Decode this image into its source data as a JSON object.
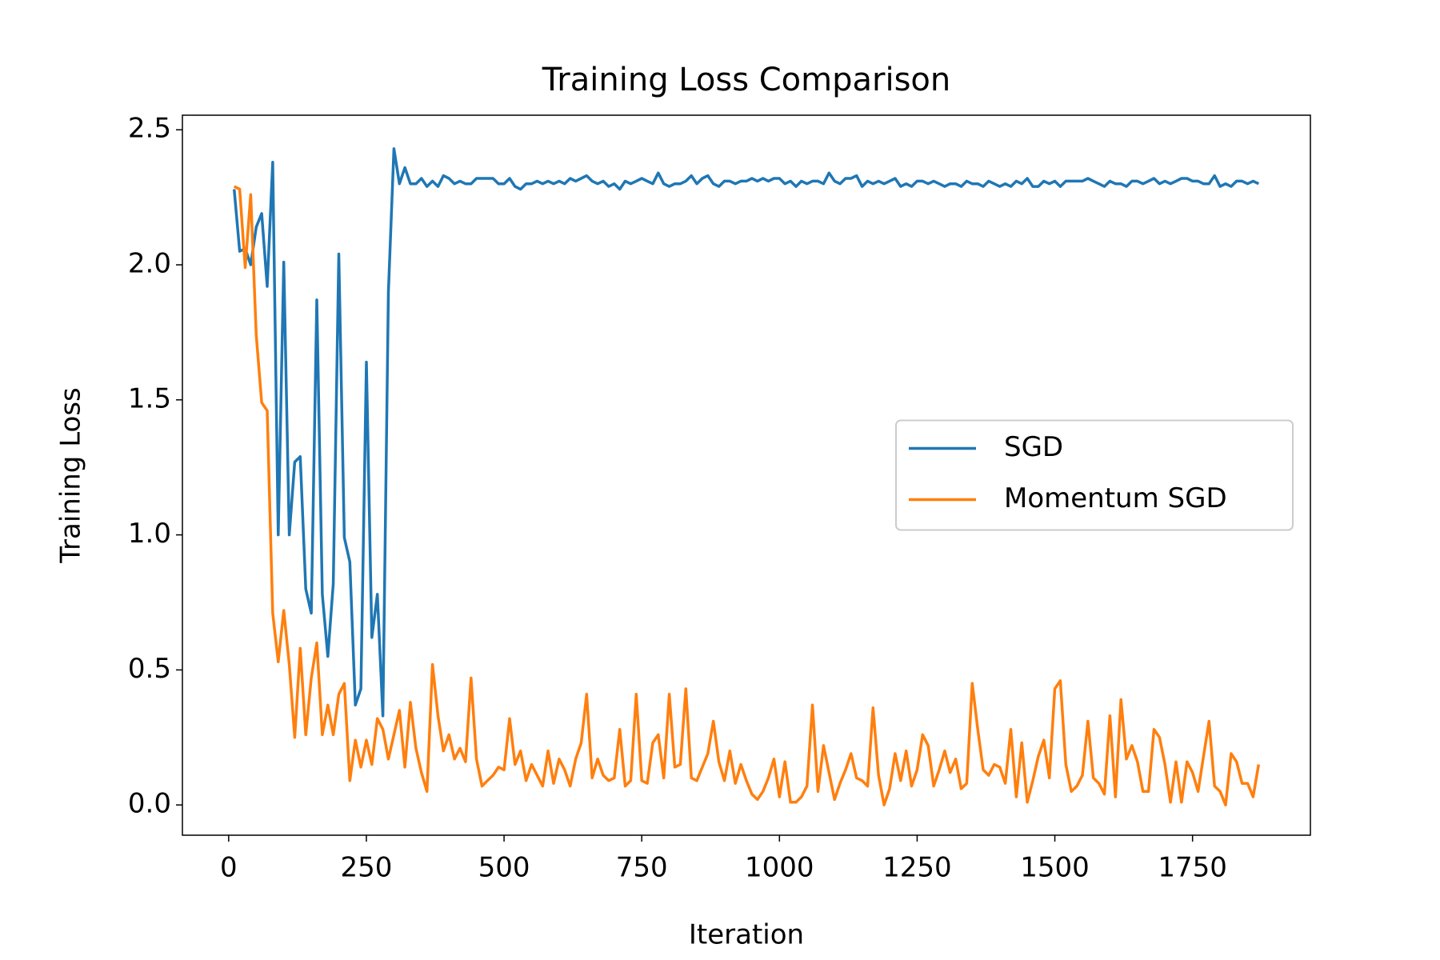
{
  "chart_data": {
    "type": "line",
    "title": "Training Loss Comparison",
    "x_label": "Iteration",
    "y_label": "Training Loss",
    "x": [
      10,
      20,
      30,
      40,
      50,
      60,
      70,
      80,
      90,
      100,
      110,
      120,
      130,
      140,
      150,
      160,
      170,
      180,
      190,
      200,
      210,
      220,
      230,
      240,
      250,
      260,
      270,
      280,
      290,
      300,
      310,
      320,
      330,
      340,
      350,
      360,
      370,
      380,
      390,
      400,
      410,
      420,
      430,
      440,
      450,
      460,
      470,
      480,
      490,
      500,
      510,
      520,
      530,
      540,
      550,
      560,
      570,
      580,
      590,
      600,
      610,
      620,
      630,
      640,
      650,
      660,
      670,
      680,
      690,
      700,
      710,
      720,
      730,
      740,
      750,
      760,
      770,
      780,
      790,
      800,
      810,
      820,
      830,
      840,
      850,
      860,
      870,
      880,
      890,
      900,
      910,
      920,
      930,
      940,
      950,
      960,
      970,
      980,
      990,
      1000,
      1010,
      1020,
      1030,
      1040,
      1050,
      1060,
      1070,
      1080,
      1090,
      1100,
      1110,
      1120,
      1130,
      1140,
      1150,
      1160,
      1170,
      1180,
      1190,
      1200,
      1210,
      1220,
      1230,
      1240,
      1250,
      1260,
      1270,
      1280,
      1290,
      1300,
      1310,
      1320,
      1330,
      1340,
      1350,
      1360,
      1370,
      1380,
      1390,
      1400,
      1410,
      1420,
      1430,
      1440,
      1450,
      1460,
      1470,
      1480,
      1490,
      1500,
      1510,
      1520,
      1530,
      1540,
      1550,
      1560,
      1570,
      1580,
      1590,
      1600,
      1610,
      1620,
      1630,
      1640,
      1650,
      1660,
      1670,
      1680,
      1690,
      1700,
      1710,
      1720,
      1730,
      1740,
      1750,
      1760,
      1770,
      1780,
      1790,
      1800,
      1810,
      1820,
      1830,
      1840,
      1850,
      1860,
      1870
    ],
    "series": [
      {
        "name": "SGD",
        "color": "#1f77b4",
        "values": [
          2.28,
          2.05,
          2.06,
          2.0,
          2.14,
          2.19,
          1.92,
          2.38,
          1.0,
          2.01,
          1.0,
          1.27,
          1.29,
          0.8,
          0.71,
          1.87,
          0.78,
          0.55,
          0.82,
          2.04,
          0.99,
          0.9,
          0.37,
          0.43,
          1.64,
          0.62,
          0.78,
          0.33,
          1.9,
          2.43,
          2.3,
          2.36,
          2.3,
          2.3,
          2.32,
          2.29,
          2.31,
          2.29,
          2.33,
          2.32,
          2.3,
          2.31,
          2.3,
          2.3,
          2.32,
          2.32,
          2.32,
          2.32,
          2.3,
          2.3,
          2.32,
          2.29,
          2.28,
          2.3,
          2.3,
          2.31,
          2.3,
          2.31,
          2.3,
          2.31,
          2.3,
          2.32,
          2.31,
          2.32,
          2.33,
          2.31,
          2.3,
          2.31,
          2.29,
          2.3,
          2.28,
          2.31,
          2.3,
          2.31,
          2.32,
          2.31,
          2.3,
          2.34,
          2.3,
          2.29,
          2.3,
          2.3,
          2.31,
          2.33,
          2.3,
          2.32,
          2.33,
          2.3,
          2.29,
          2.31,
          2.31,
          2.3,
          2.31,
          2.31,
          2.32,
          2.31,
          2.32,
          2.31,
          2.32,
          2.32,
          2.3,
          2.31,
          2.29,
          2.31,
          2.3,
          2.31,
          2.31,
          2.3,
          2.34,
          2.31,
          2.3,
          2.32,
          2.32,
          2.33,
          2.29,
          2.31,
          2.3,
          2.31,
          2.3,
          2.31,
          2.32,
          2.29,
          2.3,
          2.29,
          2.31,
          2.31,
          2.3,
          2.31,
          2.3,
          2.29,
          2.3,
          2.3,
          2.29,
          2.31,
          2.3,
          2.3,
          2.29,
          2.31,
          2.3,
          2.29,
          2.3,
          2.29,
          2.31,
          2.3,
          2.32,
          2.29,
          2.29,
          2.31,
          2.3,
          2.31,
          2.29,
          2.31,
          2.31,
          2.31,
          2.31,
          2.32,
          2.31,
          2.3,
          2.29,
          2.31,
          2.3,
          2.3,
          2.29,
          2.31,
          2.31,
          2.3,
          2.31,
          2.32,
          2.3,
          2.31,
          2.3,
          2.31,
          2.32,
          2.32,
          2.31,
          2.31,
          2.3,
          2.3,
          2.33,
          2.29,
          2.3,
          2.29,
          2.31,
          2.31,
          2.3,
          2.31,
          2.3
        ]
      },
      {
        "name": "Momentum SGD",
        "color": "#ff7f0e",
        "values": [
          2.29,
          2.28,
          1.99,
          2.26,
          1.74,
          1.49,
          1.46,
          0.71,
          0.53,
          0.72,
          0.52,
          0.25,
          0.58,
          0.26,
          0.47,
          0.6,
          0.26,
          0.37,
          0.26,
          0.41,
          0.45,
          0.09,
          0.24,
          0.14,
          0.24,
          0.15,
          0.32,
          0.28,
          0.17,
          0.26,
          0.35,
          0.14,
          0.38,
          0.21,
          0.12,
          0.05,
          0.52,
          0.33,
          0.2,
          0.26,
          0.17,
          0.21,
          0.16,
          0.47,
          0.17,
          0.07,
          0.09,
          0.11,
          0.14,
          0.13,
          0.32,
          0.15,
          0.2,
          0.09,
          0.15,
          0.11,
          0.07,
          0.2,
          0.08,
          0.17,
          0.13,
          0.07,
          0.17,
          0.23,
          0.41,
          0.1,
          0.17,
          0.11,
          0.09,
          0.1,
          0.28,
          0.07,
          0.09,
          0.41,
          0.09,
          0.08,
          0.23,
          0.26,
          0.1,
          0.41,
          0.14,
          0.15,
          0.43,
          0.1,
          0.09,
          0.14,
          0.19,
          0.31,
          0.16,
          0.09,
          0.2,
          0.08,
          0.15,
          0.09,
          0.04,
          0.02,
          0.05,
          0.1,
          0.17,
          0.03,
          0.16,
          0.01,
          0.01,
          0.03,
          0.07,
          0.37,
          0.05,
          0.22,
          0.12,
          0.02,
          0.08,
          0.13,
          0.19,
          0.1,
          0.09,
          0.07,
          0.36,
          0.11,
          0.0,
          0.06,
          0.19,
          0.09,
          0.2,
          0.07,
          0.13,
          0.26,
          0.22,
          0.07,
          0.13,
          0.2,
          0.12,
          0.17,
          0.06,
          0.08,
          0.45,
          0.28,
          0.13,
          0.11,
          0.15,
          0.14,
          0.08,
          0.28,
          0.03,
          0.23,
          0.01,
          0.09,
          0.18,
          0.24,
          0.1,
          0.43,
          0.46,
          0.15,
          0.05,
          0.07,
          0.11,
          0.31,
          0.1,
          0.08,
          0.04,
          0.33,
          0.03,
          0.39,
          0.17,
          0.22,
          0.16,
          0.05,
          0.05,
          0.28,
          0.25,
          0.15,
          0.01,
          0.16,
          0.01,
          0.16,
          0.12,
          0.05,
          0.18,
          0.31,
          0.07,
          0.05,
          0.0,
          0.19,
          0.16,
          0.08,
          0.08,
          0.03,
          0.15
        ]
      }
    ],
    "xlim": [
      -84,
      1964
    ],
    "ylim": [
      -0.112,
      2.554
    ],
    "xticks": [
      0,
      250,
      500,
      750,
      1000,
      1250,
      1500,
      1750
    ],
    "yticks": [
      {
        "value": 0,
        "label": "0.0"
      },
      0.5,
      {
        "value": 1,
        "label": "1.0"
      },
      1.5,
      {
        "value": 2,
        "label": "2.0"
      },
      2.5
    ],
    "legend": "center right"
  }
}
